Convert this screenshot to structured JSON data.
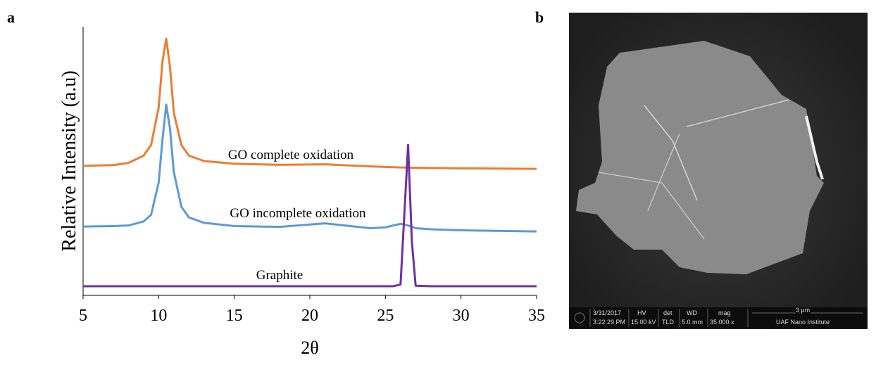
{
  "panels": {
    "left": "a",
    "right": "b"
  },
  "chart_data": {
    "type": "line",
    "ylabel": "Relative Intensity (a.u)",
    "xlabel": "2θ",
    "x": [
      5,
      7,
      8,
      9,
      9.5,
      10,
      10.25,
      10.5,
      10.75,
      11,
      11.5,
      12,
      13,
      15,
      18,
      21,
      24,
      25,
      25.5,
      26,
      26.25,
      26.5,
      26.75,
      27,
      28,
      30,
      35
    ],
    "xlim": [
      5,
      35
    ],
    "xticks": [
      5,
      10,
      15,
      20,
      25,
      30,
      35
    ],
    "ylim": [
      0,
      100
    ],
    "series": [
      {
        "name": "GO complete oxidation",
        "color": "#ed7d31",
        "values": [
          48.2,
          48.5,
          49.3,
          52,
          56,
          70,
          87,
          95.5,
          85,
          68,
          56,
          52,
          50,
          49,
          48.6,
          48.8,
          48,
          47.8,
          47.7,
          47.6,
          47.6,
          47.5,
          47.5,
          47.5,
          47.4,
          47.3,
          47.1
        ]
      },
      {
        "name": "GO incomplete oxidation",
        "color": "#5b9bd5",
        "values": [
          25.6,
          25.8,
          26,
          27.5,
          30,
          42,
          58,
          71,
          62,
          46,
          33,
          29,
          27,
          25.8,
          25.5,
          26.8,
          25,
          25.3,
          26,
          26.6,
          26.4,
          26,
          25.5,
          25,
          24.6,
          24.2,
          23.8
        ]
      },
      {
        "name": "Graphite",
        "color": "#7030a0",
        "values": [
          3.4,
          3.4,
          3.4,
          3.4,
          3.4,
          3.4,
          3.4,
          3.4,
          3.4,
          3.4,
          3.4,
          3.4,
          3.4,
          3.4,
          3.4,
          3.4,
          3.4,
          3.4,
          3.4,
          4,
          30,
          56,
          20,
          3.6,
          3.4,
          3.4,
          3.4
        ]
      }
    ]
  },
  "sem_image": {
    "date": "3/31/2017",
    "time": "3:22:29 PM",
    "hv_label": "HV",
    "hv": "15.00 kV",
    "det_label": "det",
    "det": "TLD",
    "wd_label": "WD",
    "wd": "5.0 mm",
    "mag_label": "mag",
    "mag": "35 000 x",
    "scale": "3 μm",
    "institute": "UAF Nano Institute"
  }
}
